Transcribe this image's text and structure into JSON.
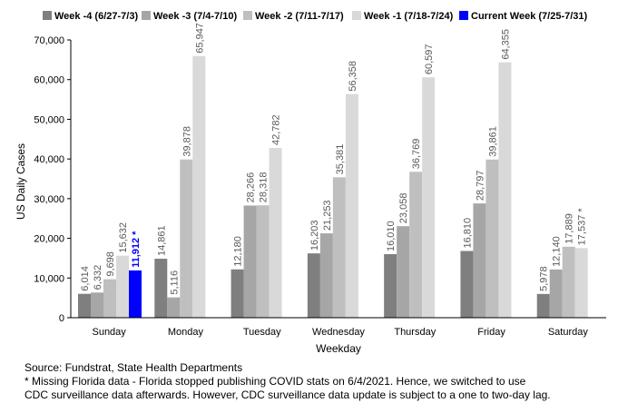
{
  "chart_data": {
    "type": "bar",
    "xlabel": "Weekday",
    "ylabel": "US Daily Cases",
    "ylim": [
      0,
      70000
    ],
    "yticks": [
      0,
      10000,
      20000,
      30000,
      40000,
      50000,
      60000,
      70000
    ],
    "ytick_labels": [
      "0",
      "10,000",
      "20,000",
      "30,000",
      "40,000",
      "50,000",
      "60,000",
      "70,000"
    ],
    "grid": false,
    "legend_position": "top",
    "categories": [
      "Sunday",
      "Monday",
      "Tuesday",
      "Wednesday",
      "Thursday",
      "Friday",
      "Saturday"
    ],
    "series": [
      {
        "name": "Week -4 (6/27-7/3)",
        "color": "#7f7f7f",
        "values": [
          6014,
          14861,
          12180,
          16203,
          16010,
          16810,
          5978
        ],
        "labels": [
          "6,014",
          "14,861",
          "12,180",
          "16,203",
          "16,010",
          "16,810",
          "5,978"
        ]
      },
      {
        "name": "Week -3 (7/4-7/10)",
        "color": "#a6a6a6",
        "values": [
          6332,
          5116,
          28266,
          21253,
          23058,
          28797,
          12140
        ],
        "labels": [
          "6,332",
          "5,116",
          "28,266",
          "21,253",
          "23,058",
          "28,797",
          "12,140"
        ]
      },
      {
        "name": "Week -2 (7/11-7/17)",
        "color": "#bfbfbf",
        "values": [
          9698,
          39878,
          28318,
          35381,
          36769,
          39861,
          17889
        ],
        "labels": [
          "9,698",
          "39,878",
          "28,318",
          "35,381",
          "36,769",
          "39,861",
          "17,889"
        ]
      },
      {
        "name": "Week -1 (7/18-7/24)",
        "color": "#d9d9d9",
        "values": [
          15632,
          65947,
          42782,
          56358,
          60597,
          64355,
          17537
        ],
        "labels": [
          "15,632",
          "65,947",
          "42,782",
          "56,358",
          "60,597",
          "64,355",
          "17,537 *"
        ]
      },
      {
        "name": "Current Week (7/25-7/31)",
        "color": "#0000ff",
        "values": [
          11912,
          null,
          null,
          null,
          null,
          null,
          null
        ],
        "labels": [
          "11,912 *",
          "",
          "",
          "",
          "",
          "",
          ""
        ]
      }
    ]
  },
  "notes": {
    "source": "Source: Fundstrat, State Health Departments",
    "footnote_line1": "* Missing Florida data - Florida stopped publishing COVID stats on 6/4/2021. Hence, we switched to use",
    "footnote_line2": "CDC surveillance data afterwards. However, CDC surveillance data update is subject to a one to two-day lag."
  }
}
